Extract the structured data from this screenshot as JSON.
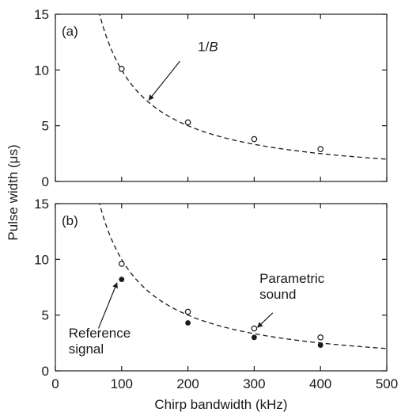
{
  "chart_data": [
    {
      "type": "scatter",
      "panel_label": "(a)",
      "xlabel": "",
      "ylabel": "Pulse width (μs)",
      "xlim": [
        0,
        500
      ],
      "ylim": [
        0,
        15
      ],
      "xticks": [
        0,
        100,
        200,
        300,
        400,
        500
      ],
      "yticks": [
        0,
        5,
        10,
        15
      ],
      "xtick_labels": [
        "",
        "",
        "",
        "",
        "",
        ""
      ],
      "ytick_labels": [
        "0",
        "5",
        "10",
        "15"
      ],
      "grid": false,
      "series": [
        {
          "name": "",
          "marker": "open-circle",
          "x": [
            100,
            200,
            300,
            400
          ],
          "y": [
            10.1,
            5.3,
            3.8,
            2.9
          ]
        }
      ],
      "curve": {
        "style": "dashed",
        "formula": "1/B",
        "scale": 1000,
        "x_range": [
          60,
          500
        ]
      },
      "annotations": [
        {
          "text_prefix": "1/",
          "text_italic": "B",
          "text_x": 215,
          "text_y": 11.7,
          "arrow_from": [
            188,
            10.8
          ],
          "arrow_to": [
            141,
            7.3
          ]
        }
      ]
    },
    {
      "type": "scatter",
      "panel_label": "(b)",
      "xlabel": "Chirp bandwidth (kHz)",
      "ylabel": "",
      "xlim": [
        0,
        500
      ],
      "ylim": [
        0,
        15
      ],
      "xticks": [
        0,
        100,
        200,
        300,
        400,
        500
      ],
      "yticks": [
        0,
        5,
        10,
        15
      ],
      "xtick_labels": [
        "0",
        "100",
        "200",
        "300",
        "400",
        "500"
      ],
      "ytick_labels": [
        "0",
        "5",
        "10",
        "15"
      ],
      "grid": false,
      "series": [
        {
          "name": "Parametric sound",
          "marker": "open-circle",
          "x": [
            100,
            200,
            300,
            400
          ],
          "y": [
            9.6,
            5.3,
            3.8,
            3.0
          ]
        },
        {
          "name": "Reference signal",
          "marker": "filled-circle",
          "x": [
            100,
            200,
            300,
            400
          ],
          "y": [
            8.2,
            4.3,
            3.0,
            2.3
          ]
        }
      ],
      "curve": {
        "style": "dashed",
        "formula": "1/B",
        "scale": 1000,
        "x_range": [
          60,
          500
        ]
      },
      "annotations": [
        {
          "lines": [
            "Parametric",
            "sound"
          ],
          "text_x": 308,
          "text_y": 7.9,
          "arrow_from": [
            328,
            5.2
          ],
          "arrow_to": [
            305,
            3.9
          ]
        },
        {
          "lines": [
            "Reference",
            "signal"
          ],
          "text_x": 20,
          "text_y": 3.0,
          "arrow_from": [
            65,
            3.8
          ],
          "arrow_to": [
            93,
            7.9
          ]
        }
      ]
    }
  ]
}
